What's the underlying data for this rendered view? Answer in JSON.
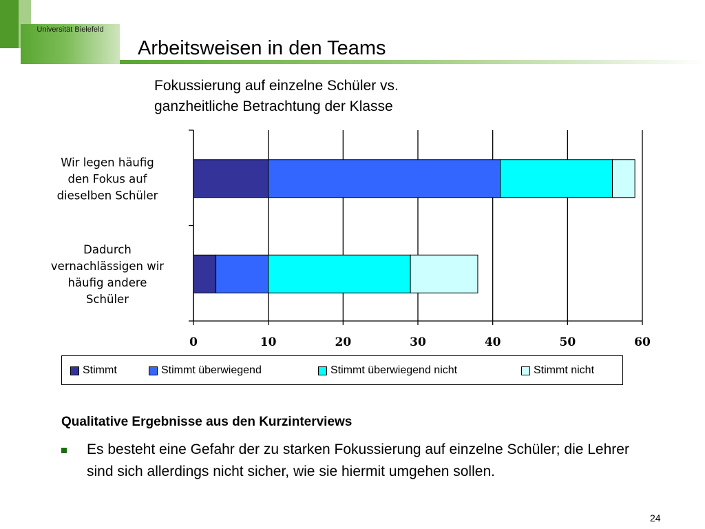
{
  "header": {
    "university": "Universität Bielefeld",
    "title": "Arbeitsweisen in den Teams"
  },
  "chart_title": {
    "line1": "Fokussierung auf einzelne Schüler vs.",
    "line2": "ganzheitliche Betrachtung der Klasse"
  },
  "chart_data": {
    "type": "bar",
    "orientation": "horizontal",
    "stacked": true,
    "categories": [
      "Wir legen häufig den Fokus auf dieselben Schüler",
      "Dadurch vernachlässigen wir häufig andere Schüler"
    ],
    "category_lines": [
      [
        "Wir legen häufig",
        "den Fokus auf",
        "dieselben Schüler"
      ],
      [
        "Dadurch",
        "vernachlässigen wir",
        "häufig andere",
        "Schüler"
      ]
    ],
    "series": [
      {
        "name": "Stimmt",
        "values": [
          10,
          3
        ],
        "color": "#333399"
      },
      {
        "name": "Stimmt überwiegend",
        "values": [
          31,
          7
        ],
        "color": "#3366ff"
      },
      {
        "name": "Stimmt überwiegend nicht",
        "values": [
          15,
          19
        ],
        "color": "#00ffff"
      },
      {
        "name": "Stimmt nicht",
        "values": [
          3,
          9
        ],
        "color": "#ccffff"
      }
    ],
    "xlim": [
      0,
      60
    ],
    "xticks": [
      "0",
      "10",
      "20",
      "30",
      "40",
      "50",
      "60"
    ],
    "grid": true,
    "legend_position": "bottom"
  },
  "qualitative": {
    "heading": "Qualitative Ergebnisse aus den Kurzinterviews",
    "bullet": "Es besteht eine Gefahr der zu starken Fokussierung auf einzelne Schüler; die Lehrer sind sich allerdings nicht sicher, wie sie hiermit umgehen sollen."
  },
  "page_number": "24",
  "colors": {
    "accent_green": "#5aa632",
    "bullet_green": "#1e6b16"
  }
}
